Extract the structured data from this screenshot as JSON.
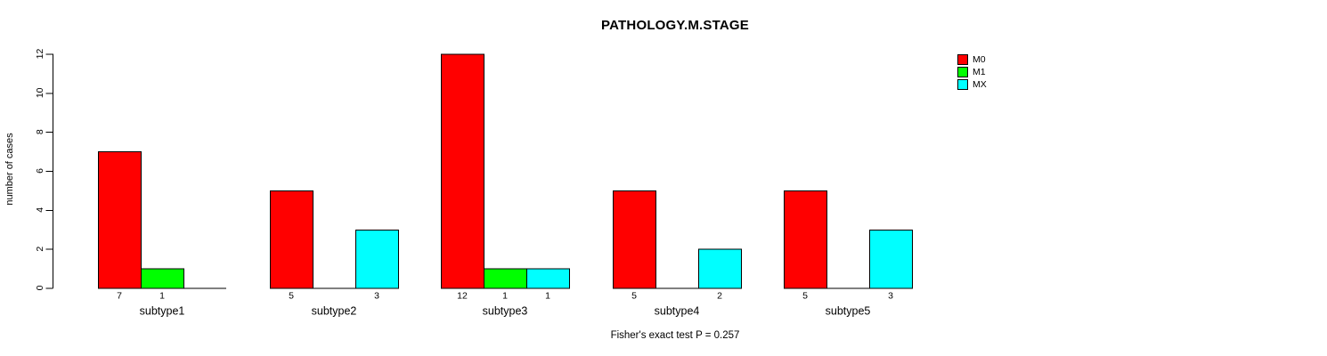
{
  "chart_data": {
    "type": "bar",
    "title": "PATHOLOGY.M.STAGE",
    "ylabel": "number of cases",
    "xlabel": "",
    "categories": [
      "subtype1",
      "subtype2",
      "subtype3",
      "subtype4",
      "subtype5"
    ],
    "series": [
      {
        "name": "M0",
        "color": "#ff0000",
        "values": [
          7,
          5,
          12,
          5,
          5
        ]
      },
      {
        "name": "M1",
        "color": "#00ff00",
        "values": [
          1,
          0,
          1,
          0,
          0
        ]
      },
      {
        "name": "MX",
        "color": "#00ffff",
        "values": [
          0,
          3,
          1,
          2,
          3
        ]
      }
    ],
    "bar_value_label_rule": "value shown under each bar only when value > 0",
    "yticks": [
      0,
      2,
      4,
      6,
      8,
      10,
      12
    ],
    "ylim": [
      0,
      12
    ],
    "grid": false,
    "legend_position": "top-right",
    "annotation": "Fisher's exact test P = 0.257",
    "axis_color": "#000000",
    "background_color": "#ffffff"
  }
}
